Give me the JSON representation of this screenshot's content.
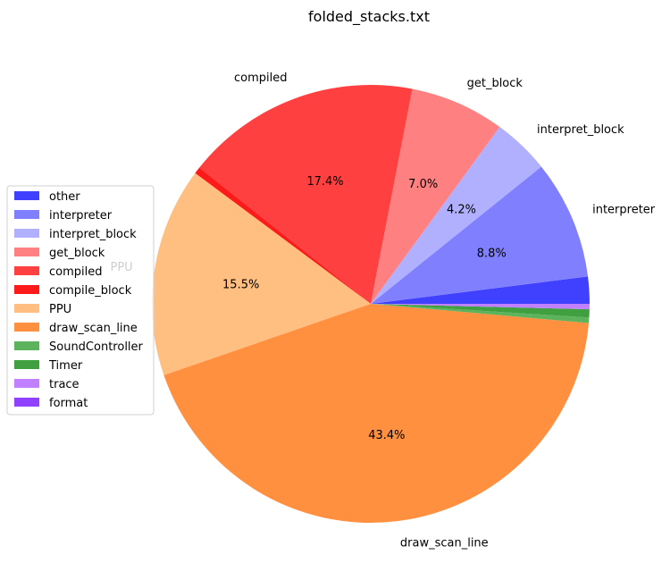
{
  "chart_data": {
    "type": "pie",
    "title": "folded_stacks.txt",
    "legend_position": "center-left",
    "slices": [
      {
        "name": "other",
        "value": 2.0,
        "color": "#4040ff"
      },
      {
        "name": "interpreter",
        "value": 8.8,
        "color": "#8080ff",
        "pct_label": "8.8%",
        "outer_label": "interpreter"
      },
      {
        "name": "interpret_block",
        "value": 4.2,
        "color": "#b0b0ff",
        "pct_label": "4.2%",
        "outer_label": "interpret_block"
      },
      {
        "name": "get_block",
        "value": 7.0,
        "color": "#ff8080",
        "pct_label": "7.0%",
        "outer_label": "get_block"
      },
      {
        "name": "compiled",
        "value": 17.4,
        "color": "#ff4040",
        "pct_label": "17.4%",
        "outer_label": "compiled"
      },
      {
        "name": "compile_block",
        "value": 0.5,
        "color": "#ff1a1a"
      },
      {
        "name": "PPU",
        "value": 15.5,
        "color": "#ffbf80",
        "pct_label": "15.5%",
        "outer_label": "PPU"
      },
      {
        "name": "draw_scan_line",
        "value": 43.4,
        "color": "#ff9040",
        "pct_label": "43.4%",
        "outer_label": "draw_scan_line"
      },
      {
        "name": "SoundController",
        "value": 0.4,
        "color": "#5cb35c"
      },
      {
        "name": "Timer",
        "value": 0.6,
        "color": "#40a040"
      },
      {
        "name": "trace",
        "value": 0.4,
        "color": "#c080ff"
      },
      {
        "name": "format",
        "value": 0.0,
        "color": "#9040ff"
      }
    ]
  }
}
